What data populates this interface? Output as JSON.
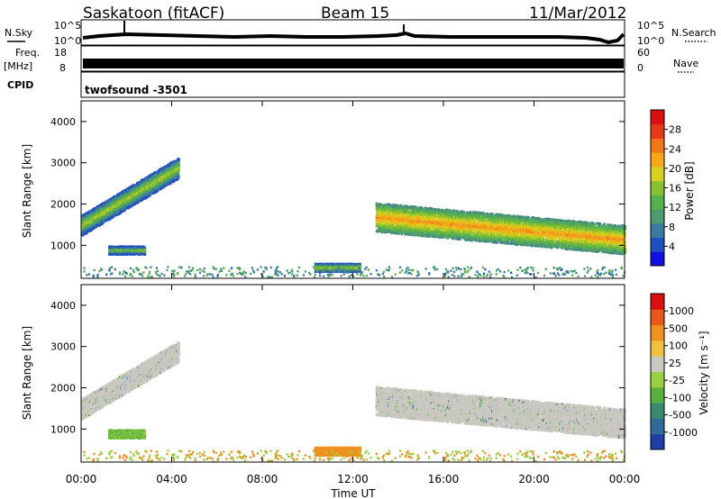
{
  "header": {
    "station": "Saskatoon (fitACF)",
    "beam": "Beam 15",
    "date": "11/Mar/2012"
  },
  "status_panels": {
    "nsky": {
      "left_label": "N.Sky",
      "right_label": "N.Search",
      "ticks_left": [
        "10^5",
        "10^0"
      ],
      "ticks_right": [
        "10^5",
        "10^0"
      ]
    },
    "freq": {
      "left_label": "Freq.",
      "left_unit": "[MHz]",
      "right_label": "Nave",
      "ticks_left": [
        "18",
        "8"
      ],
      "ticks_right": [
        "60",
        "0"
      ]
    },
    "cpid": {
      "left_label": "CPID",
      "program": "twofsound  -3501"
    }
  },
  "chart_data": [
    {
      "type": "heatmap",
      "name": "power",
      "ylabel": "Slant Range [km]",
      "xlabel": "Time UT",
      "xlim_hours": [
        0,
        24
      ],
      "ylim": [
        200,
        4500
      ],
      "yticks": [
        1000,
        2000,
        3000,
        4000
      ],
      "colorbar": {
        "label": "Power [dB]",
        "ticks": [
          "28",
          "24",
          "20",
          "16",
          "12",
          "8",
          "4"
        ],
        "colors": [
          "#1010e0",
          "#1f4fc0",
          "#3a7aa0",
          "#4f9a70",
          "#55b050",
          "#88c030",
          "#d8d020",
          "#f5a818",
          "#f07818",
          "#e83818",
          "#d81010"
        ]
      },
      "regions": [
        {
          "label": "morning_band",
          "t0": 0.0,
          "t1": 4.3,
          "r0_start": 1500,
          "r0_end": 2900,
          "level": 18
        },
        {
          "label": "morning_low",
          "t0": 1.2,
          "t1": 2.8,
          "r0_start": 900,
          "r0_end": 900,
          "level": 16
        },
        {
          "label": "noon_patch",
          "t0": 10.3,
          "t1": 12.3,
          "r0_start": 480,
          "r0_end": 480,
          "level": 18
        },
        {
          "label": "evening_band",
          "t0": 13.0,
          "t1": 24.0,
          "r0_start": 1700,
          "r0_end": 1150,
          "level": 24
        }
      ]
    },
    {
      "type": "heatmap",
      "name": "velocity",
      "ylabel": "Slant Range [km]",
      "xlabel": "Time UT",
      "xlim_hours": [
        0,
        24
      ],
      "ylim": [
        200,
        4500
      ],
      "yticks": [
        1000,
        2000,
        3000,
        4000
      ],
      "xticks": [
        "00:00",
        "04:00",
        "08:00",
        "12:00",
        "16:00",
        "20:00",
        "00:00"
      ],
      "colorbar": {
        "label": "Velocity [m s⁻¹]",
        "ticks": [
          "1000",
          "500",
          "100",
          "25",
          "-25",
          "-100",
          "-500",
          "-1000"
        ],
        "colors": [
          "#1e3fa8",
          "#2f6a98",
          "#3a8a70",
          "#58b040",
          "#9ad040",
          "#c8c8c0",
          "#f0c040",
          "#f09020",
          "#e85818",
          "#d81010"
        ]
      }
    }
  ]
}
